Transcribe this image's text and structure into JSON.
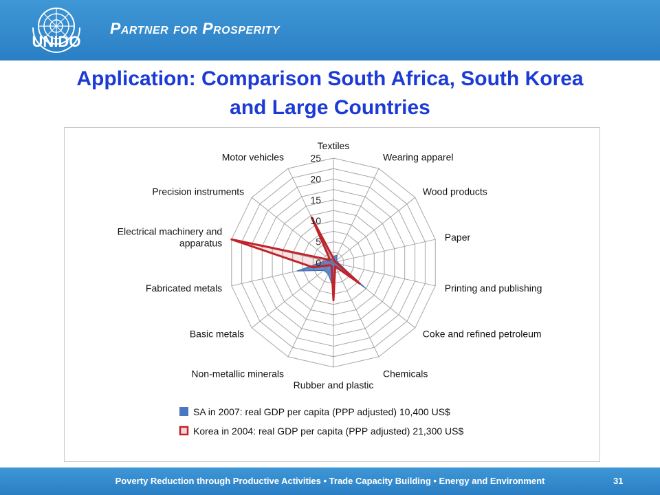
{
  "header": {
    "logo_text": "UNIDO",
    "tagline": "Partner for Prosperity"
  },
  "slide": {
    "title_line1": "Application: Comparison South Africa, South Korea",
    "title_line2": "and Large Countries",
    "page_number": "31"
  },
  "footer": {
    "items": [
      "Poverty Reduction through Productive Activities",
      "Trade Capacity Building",
      "Energy and Environment"
    ],
    "separator": "•",
    "text": "Poverty Reduction through Productive Activities  •  Trade Capacity Building  •  Energy and Environment"
  },
  "chart_data": {
    "type": "radar",
    "categories": [
      "Textiles",
      "Wearing apparel",
      "Wood products",
      "Paper",
      "Printing and publishing",
      "Coke and refined petroleum",
      "Chemicals",
      "Rubber and plastic",
      "Non-metallic minerals",
      "Basic metals",
      "Fabricated metals",
      "Electrical machinery and apparatus",
      "Precision instruments",
      "Motor vehicles"
    ],
    "category_lines": [
      [
        "Textiles"
      ],
      [
        "Wearing apparel"
      ],
      [
        "Wood products"
      ],
      [
        "Paper"
      ],
      [
        "Printing and publishing"
      ],
      [
        "Coke and refined petroleum"
      ],
      [
        "Chemicals"
      ],
      [
        "Rubber and plastic"
      ],
      [
        "Non-metallic minerals"
      ],
      [
        "Basic metals"
      ],
      [
        "Fabricated metals"
      ],
      [
        "Electrical machinery and",
        "apparatus"
      ],
      [
        "Precision instruments"
      ],
      [
        "Motor vehicles"
      ]
    ],
    "rlim": [
      0,
      25
    ],
    "ticks": [
      0,
      5,
      10,
      15,
      20,
      25
    ],
    "series": [
      {
        "name": "SA in 2007: real GDP per capita (PPP adjusted) 10,400 US$",
        "color": "#4a78c0",
        "style": "filled",
        "values": [
          1.5,
          2,
          1,
          1,
          1.5,
          10,
          1,
          6,
          3,
          3,
          9,
          2,
          1,
          1
        ]
      },
      {
        "name": "Korea in 2004: real GDP per capita (PPP adjusted) 21,300 US$",
        "color": "#c0242a",
        "style": "outline",
        "values": [
          1,
          0.5,
          0.5,
          0.5,
          1,
          8,
          1,
          9,
          1,
          1,
          5,
          25,
          1,
          12
        ]
      }
    ],
    "legend_position": "bottom",
    "grid": true
  }
}
